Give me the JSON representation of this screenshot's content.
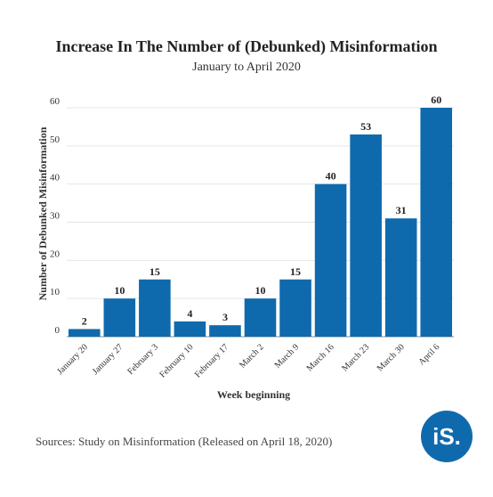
{
  "chart_data": {
    "type": "bar",
    "title": "Increase In The Number of (Debunked) Misinformation",
    "subtitle": "January to April 2020",
    "x_label": "Week beginning",
    "y_label": "Number of Debunked Misinformation",
    "categories": [
      "January 20",
      "January 27",
      "February 3",
      "February 10",
      "February 17",
      "March 2",
      "March 9",
      "March 16",
      "March 23",
      "March 30",
      "April 6"
    ],
    "values": [
      2,
      10,
      15,
      4,
      3,
      10,
      15,
      40,
      53,
      31,
      60
    ],
    "color": "#0f6aad",
    "ylim": [
      0,
      60
    ],
    "yticks": [
      0,
      10,
      20,
      30,
      40,
      50,
      60
    ],
    "grid": true
  },
  "footer": {
    "source": "Sources: Study on Misinformation (Released on April 18, 2020)",
    "logo": "iS."
  }
}
